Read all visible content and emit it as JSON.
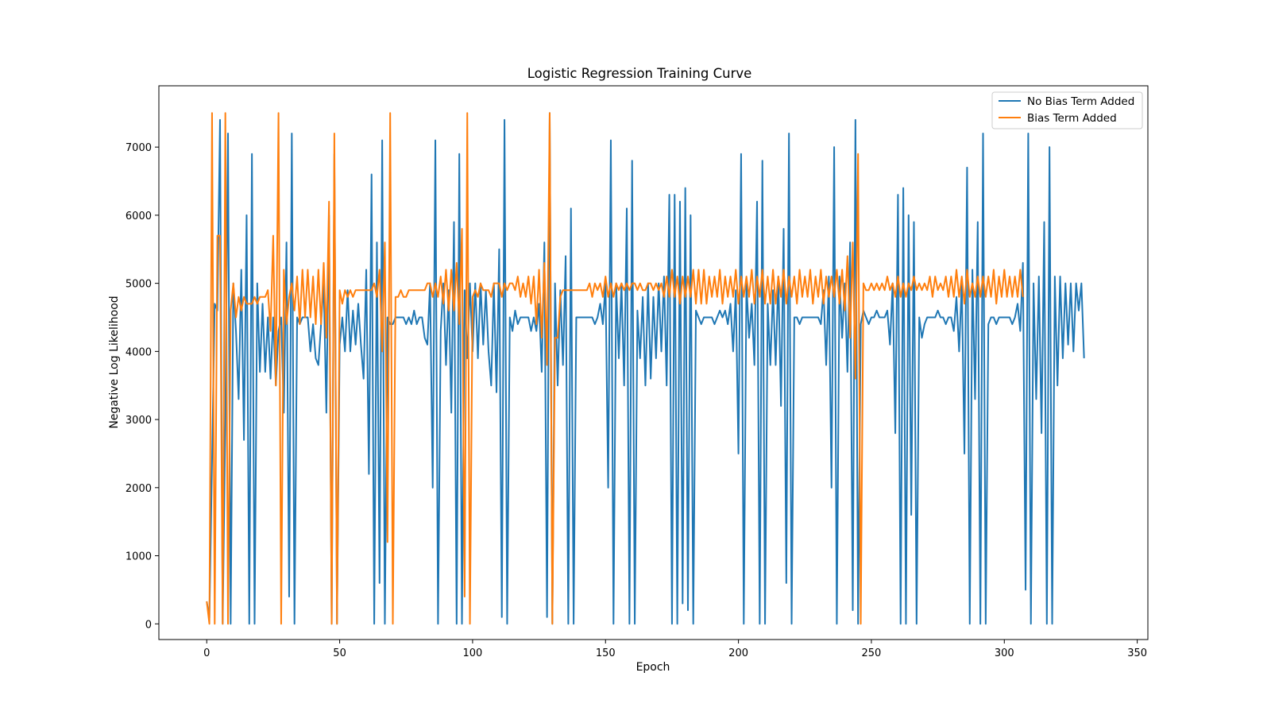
{
  "chart_data": {
    "type": "line",
    "title": "Logistic Regression Training Curve",
    "xlabel": "Epoch",
    "ylabel": "Negative Log Likelihood",
    "xlim": [
      -18,
      354
    ],
    "ylim": [
      -230,
      7900
    ],
    "xticks": [
      0,
      50,
      100,
      150,
      200,
      250,
      300,
      350
    ],
    "yticks": [
      0,
      1000,
      2000,
      3000,
      4000,
      5000,
      6000,
      7000
    ],
    "grid": false,
    "legend_position": "top-right",
    "series": [
      {
        "name": "No Bias Term Added",
        "color": "#1f77b4",
        "values": [
          330,
          90,
          2400,
          4700,
          4600,
          7400,
          0,
          3000,
          7200,
          0,
          5000,
          4300,
          3300,
          5200,
          2700,
          6000,
          0,
          6900,
          0,
          5000,
          3700,
          4700,
          3700,
          4500,
          3600,
          4500,
          3500,
          4300,
          4500,
          3100,
          5600,
          400,
          7200,
          0,
          4500,
          4400,
          4500,
          4500,
          4500,
          4000,
          4400,
          3900,
          3800,
          4400,
          5000,
          3100,
          6000,
          0,
          6900,
          0,
          4100,
          4500,
          4000,
          4900,
          4000,
          4600,
          4100,
          4700,
          4100,
          3600,
          5200,
          2200,
          6600,
          0,
          5600,
          600,
          7100,
          0,
          4500,
          4400,
          4400,
          4500,
          4500,
          4500,
          4500,
          4400,
          4500,
          4400,
          4600,
          4400,
          4500,
          4500,
          4200,
          4100,
          5000,
          2000,
          7100,
          0,
          4300,
          5000,
          3800,
          4900,
          3100,
          5900,
          0,
          6900,
          0,
          4900,
          3900,
          5000,
          4000,
          5000,
          3900,
          5000,
          4100,
          4900,
          4000,
          3500,
          5000,
          3400,
          5500,
          100,
          7400,
          0,
          4500,
          4300,
          4600,
          4400,
          4500,
          4500,
          4500,
          4500,
          4300,
          4500,
          4300,
          4700,
          3700,
          5600,
          100,
          7500,
          0,
          5000,
          3500,
          4900,
          3800,
          5400,
          0,
          6100,
          0,
          4500,
          4500,
          4500,
          4500,
          4500,
          4500,
          4500,
          4400,
          4500,
          4700,
          4400,
          5000,
          2000,
          7100,
          0,
          5000,
          3900,
          5000,
          3500,
          6100,
          0,
          6800,
          0,
          4600,
          3900,
          4800,
          3500,
          5000,
          3600,
          4800,
          3900,
          5000,
          4000,
          5100,
          3500,
          6300,
          0,
          6300,
          0,
          6200,
          300,
          6400,
          200,
          6000,
          0,
          4600,
          4500,
          4400,
          4500,
          4500,
          4500,
          4500,
          4400,
          4500,
          4600,
          4500,
          4600,
          4400,
          4700,
          4000,
          4900,
          2500,
          6900,
          0,
          5000,
          4200,
          4700,
          3800,
          6200,
          0,
          6800,
          0,
          4700,
          3800,
          4900,
          3800,
          5100,
          3200,
          5800,
          600,
          7200,
          0,
          4500,
          4500,
          4400,
          4500,
          4500,
          4500,
          4500,
          4500,
          4500,
          4500,
          4400,
          4900,
          3800,
          5100,
          2000,
          7000,
          0,
          5100,
          4200,
          5000,
          3700,
          5600,
          200,
          7400,
          0,
          4400,
          4600,
          4500,
          4400,
          4500,
          4500,
          4600,
          4500,
          4500,
          4500,
          4600,
          4100,
          5000,
          2800,
          6300,
          0,
          6400,
          0,
          6000,
          1600,
          5900,
          0,
          4500,
          4200,
          4400,
          4500,
          4500,
          4500,
          4500,
          4600,
          4500,
          4500,
          4400,
          4500,
          4500,
          4300,
          4800,
          4000,
          5000,
          2500,
          6700,
          0,
          5200,
          3300,
          5900,
          0,
          7200,
          0,
          4400,
          4500,
          4500,
          4400,
          4500,
          4500,
          4500,
          4500,
          4500,
          4400,
          4500,
          4700,
          4300,
          5300,
          500,
          7200,
          0,
          5000,
          3300,
          5100,
          2800,
          5900,
          0,
          7000,
          0,
          5100,
          3500,
          5100,
          3900,
          5000,
          4100,
          5000,
          4000,
          5000,
          4600,
          5000,
          3900
        ]
      },
      {
        "name": "Bias Term Added",
        "color": "#ff7f0e",
        "values": [
          330,
          0,
          7500,
          0,
          5700,
          5700,
          0,
          7500,
          0,
          4600,
          5000,
          4500,
          4800,
          4600,
          4800,
          4700,
          4700,
          4700,
          4800,
          4700,
          4800,
          4800,
          4800,
          4900,
          4300,
          5700,
          3500,
          7500,
          0,
          5200,
          4400,
          4800,
          5000,
          4600,
          5100,
          4400,
          5200,
          4500,
          5200,
          4500,
          5100,
          4400,
          5200,
          4400,
          5300,
          4200,
          6200,
          0,
          7200,
          0,
          4900,
          4700,
          4900,
          4800,
          4900,
          4800,
          4900,
          4900,
          4900,
          4900,
          4900,
          4900,
          4900,
          5000,
          4800,
          5200,
          4000,
          5600,
          1200,
          7500,
          0,
          4800,
          4800,
          4900,
          4800,
          4800,
          4900,
          4900,
          4900,
          4900,
          4900,
          4900,
          4900,
          5000,
          5000,
          4800,
          5000,
          4800,
          5100,
          4700,
          5200,
          4600,
          5200,
          4600,
          5300,
          4400,
          5800,
          400,
          7500,
          0,
          4800,
          4900,
          4800,
          5000,
          4900,
          4900,
          4900,
          4800,
          5000,
          5000,
          5000,
          4800,
          5000,
          4900,
          5000,
          5000,
          4900,
          5100,
          4800,
          5000,
          4800,
          5100,
          4700,
          5100,
          4400,
          5200,
          4200,
          5300,
          3800,
          7500,
          0,
          4200,
          4200,
          4800,
          4900,
          4900,
          4900,
          4900,
          4900,
          4900,
          4900,
          4900,
          4900,
          4900,
          5000,
          4800,
          5000,
          4900,
          5000,
          4800,
          5100,
          4800,
          5000,
          4800,
          5000,
          4900,
          5000,
          4900,
          5000,
          4900,
          5000,
          5000,
          4900,
          5000,
          4900,
          4900,
          5000,
          5000,
          4900,
          5000,
          4900,
          5000,
          4800,
          5100,
          4800,
          5200,
          4800,
          5100,
          4700,
          5100,
          4800,
          5100,
          4800,
          5200,
          4700,
          5200,
          4700,
          5200,
          4700,
          5100,
          4800,
          5100,
          4800,
          5200,
          4700,
          5100,
          4800,
          5100,
          4800,
          5200,
          4700,
          5100,
          4800,
          5100,
          4800,
          5200,
          4700,
          5100,
          4800,
          5200,
          4700,
          5100,
          4700,
          5200,
          4700,
          5100,
          4800,
          5200,
          4700,
          5100,
          4800,
          5100,
          4700,
          5200,
          4800,
          5100,
          4800,
          5200,
          4700,
          5100,
          4800,
          5200,
          4700,
          5100,
          4800,
          5100,
          4800,
          5200,
          4700,
          5200,
          4600,
          5400,
          4200,
          5600,
          3600,
          6900,
          0,
          5000,
          4900,
          4900,
          5000,
          4900,
          5000,
          4900,
          5000,
          4900,
          5100,
          4900,
          5000,
          4800,
          5100,
          4800,
          5000,
          4800,
          5000,
          4900,
          5100,
          4900,
          5000,
          4900,
          5000,
          4900,
          5100,
          4800,
          5100,
          4900,
          5000,
          4900,
          5100,
          4800,
          5100,
          4800,
          5200,
          4800,
          5100,
          4700,
          5200,
          4800,
          5000,
          4800,
          5100,
          4800,
          5100,
          4800,
          5100,
          4800,
          5200,
          4700,
          5100,
          4800,
          5200,
          4800,
          5100,
          4800,
          5100,
          4800,
          5200,
          4800
        ]
      }
    ]
  }
}
